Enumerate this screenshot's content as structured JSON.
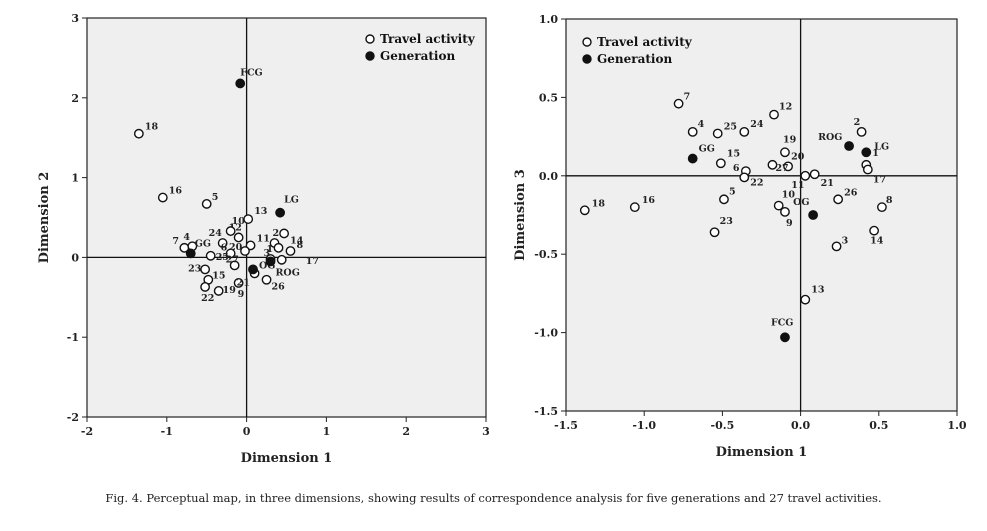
{
  "chart_data": [
    {
      "type": "scatter",
      "xlabel": "Dimension 1",
      "ylabel": "Dimension 2",
      "xlim": [
        -2,
        3
      ],
      "ylim": [
        -2,
        3
      ],
      "xticks": [
        "-2",
        "-1",
        "0",
        "1",
        "2",
        "3"
      ],
      "yticks": [
        "-2",
        "-1",
        "0",
        "1",
        "2",
        "3"
      ],
      "grid": false,
      "legend_position": "top-right",
      "series": [
        {
          "name": "Travel activity",
          "marker": "open-circle",
          "points": [
            {
              "label": "18",
              "x": -1.35,
              "y": 1.55
            },
            {
              "label": "16",
              "x": -1.05,
              "y": 0.75
            },
            {
              "label": "5",
              "x": -0.5,
              "y": 0.67
            },
            {
              "label": "13",
              "x": 0.02,
              "y": 0.48
            },
            {
              "label": "12",
              "x": -0.1,
              "y": 0.25
            },
            {
              "label": "24",
              "x": -0.3,
              "y": 0.18
            },
            {
              "label": "10",
              "x": -0.2,
              "y": 0.33
            },
            {
              "label": "11",
              "x": 0.05,
              "y": 0.15
            },
            {
              "label": "2",
              "x": 0.35,
              "y": 0.18
            },
            {
              "label": "14",
              "x": 0.47,
              "y": 0.3
            },
            {
              "label": "8",
              "x": 0.55,
              "y": 0.08
            },
            {
              "label": "1",
              "x": 0.4,
              "y": 0.12
            },
            {
              "label": "3",
              "x": 0.3,
              "y": -0.02
            },
            {
              "label": "17",
              "x": 0.44,
              "y": -0.03
            },
            {
              "label": "7",
              "x": -0.78,
              "y": 0.12
            },
            {
              "label": "4",
              "x": -0.68,
              "y": 0.14
            },
            {
              "label": "6",
              "x": -0.2,
              "y": 0.05
            },
            {
              "label": "20",
              "x": -0.02,
              "y": 0.08
            },
            {
              "label": "25",
              "x": -0.45,
              "y": 0.02
            },
            {
              "label": "27",
              "x": -0.15,
              "y": -0.1
            },
            {
              "label": "23",
              "x": -0.52,
              "y": -0.15
            },
            {
              "label": "15",
              "x": -0.48,
              "y": -0.28
            },
            {
              "label": "22",
              "x": -0.52,
              "y": -0.37
            },
            {
              "label": "19",
              "x": -0.35,
              "y": -0.42
            },
            {
              "label": "9",
              "x": -0.1,
              "y": -0.32
            },
            {
              "label": "21",
              "x": 0.1,
              "y": -0.2
            },
            {
              "label": "26",
              "x": 0.25,
              "y": -0.28
            }
          ]
        },
        {
          "name": "Generation",
          "marker": "filled-circle",
          "points": [
            {
              "label": "FCG",
              "x": -0.08,
              "y": 2.18
            },
            {
              "label": "LG",
              "x": 0.42,
              "y": 0.56
            },
            {
              "label": "GG",
              "x": -0.7,
              "y": 0.05
            },
            {
              "label": "OG",
              "x": 0.08,
              "y": -0.15
            },
            {
              "label": "ROG",
              "x": 0.3,
              "y": -0.05
            }
          ]
        }
      ]
    },
    {
      "type": "scatter",
      "xlabel": "Dimension 1",
      "ylabel": "Dimension 3",
      "xlim": [
        -1.5,
        1.0
      ],
      "ylim": [
        -1.5,
        1.0
      ],
      "xticks": [
        "-1.5",
        "-1.0",
        "-0.5",
        "0.0",
        "0.5",
        "1.0"
      ],
      "yticks": [
        "-1.5",
        "-1.0",
        "-0.5",
        "0.0",
        "0.5",
        "1.0"
      ],
      "grid": false,
      "legend_position": "top-left",
      "series": [
        {
          "name": "Travel activity",
          "marker": "open-circle",
          "points": [
            {
              "label": "7",
              "x": -0.78,
              "y": 0.46
            },
            {
              "label": "12",
              "x": -0.17,
              "y": 0.39
            },
            {
              "label": "4",
              "x": -0.69,
              "y": 0.28
            },
            {
              "label": "25",
              "x": -0.53,
              "y": 0.27
            },
            {
              "label": "24",
              "x": -0.36,
              "y": 0.28
            },
            {
              "label": "2",
              "x": 0.39,
              "y": 0.28
            },
            {
              "label": "19",
              "x": -0.1,
              "y": 0.15
            },
            {
              "label": "15",
              "x": -0.51,
              "y": 0.08
            },
            {
              "label": "6",
              "x": -0.35,
              "y": 0.03
            },
            {
              "label": "20",
              "x": -0.08,
              "y": 0.06
            },
            {
              "label": "27",
              "x": -0.18,
              "y": 0.07
            },
            {
              "label": "22",
              "x": -0.36,
              "y": -0.01
            },
            {
              "label": "11",
              "x": 0.03,
              "y": 0.0
            },
            {
              "label": "21",
              "x": 0.09,
              "y": 0.01
            },
            {
              "label": "1",
              "x": 0.42,
              "y": 0.07
            },
            {
              "label": "17",
              "x": 0.43,
              "y": 0.04
            },
            {
              "label": "26",
              "x": 0.24,
              "y": -0.15
            },
            {
              "label": "8",
              "x": 0.52,
              "y": -0.2
            },
            {
              "label": "14",
              "x": 0.47,
              "y": -0.35
            },
            {
              "label": "18",
              "x": -1.38,
              "y": -0.22
            },
            {
              "label": "16",
              "x": -1.06,
              "y": -0.2
            },
            {
              "label": "5",
              "x": -0.49,
              "y": -0.15
            },
            {
              "label": "10",
              "x": -0.14,
              "y": -0.19
            },
            {
              "label": "9",
              "x": -0.1,
              "y": -0.23
            },
            {
              "label": "23",
              "x": -0.55,
              "y": -0.36
            },
            {
              "label": "3",
              "x": 0.23,
              "y": -0.45
            },
            {
              "label": "13",
              "x": 0.03,
              "y": -0.79
            }
          ]
        },
        {
          "name": "Generation",
          "marker": "filled-circle",
          "points": [
            {
              "label": "ROG",
              "x": 0.31,
              "y": 0.19
            },
            {
              "label": "LG",
              "x": 0.42,
              "y": 0.15
            },
            {
              "label": "GG",
              "x": -0.69,
              "y": 0.11
            },
            {
              "label": "OG",
              "x": 0.08,
              "y": -0.25
            },
            {
              "label": "FCG",
              "x": -0.1,
              "y": -1.03
            }
          ]
        }
      ]
    }
  ],
  "caption": "Fig. 4. Perceptual map, in three dimensions, showing results of correspondence analysis for five generations and 27 travel activities."
}
